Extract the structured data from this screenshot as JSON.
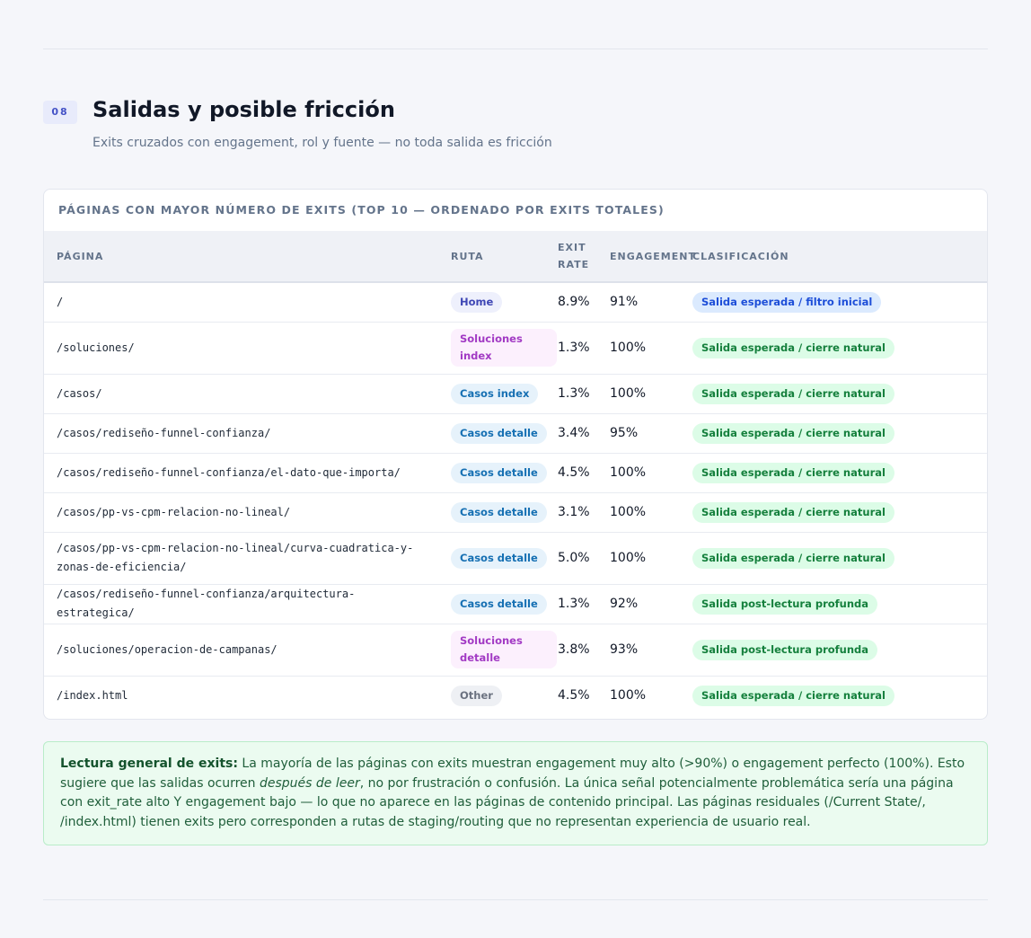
{
  "section": {
    "number": "08",
    "title": "Salidas y posible fricción",
    "subtitle": "Exits cruzados con engagement, rol y fuente — no toda salida es fricción"
  },
  "table": {
    "title": "Páginas con mayor número de exits (top 10 — ordenado por exits totales)",
    "columns": [
      "Página",
      "Ruta",
      "Exit rate",
      "Engagement",
      "Clasificación"
    ],
    "rows": [
      {
        "page": "/",
        "ruta": "Home",
        "ruta_type": "home",
        "exit_rate": "8.9%",
        "engagement": "91%",
        "classification": "Salida esperada / filtro inicial",
        "class_type": "blue"
      },
      {
        "page": "/soluciones/",
        "ruta": "Soluciones index",
        "ruta_type": "sol",
        "exit_rate": "1.3%",
        "engagement": "100%",
        "classification": "Salida esperada / cierre natural",
        "class_type": "green"
      },
      {
        "page": "/casos/",
        "ruta": "Casos index",
        "ruta_type": "casos",
        "exit_rate": "1.3%",
        "engagement": "100%",
        "classification": "Salida esperada / cierre natural",
        "class_type": "green"
      },
      {
        "page": "/casos/rediseño-funnel-confianza/",
        "ruta": "Casos detalle",
        "ruta_type": "casos",
        "exit_rate": "3.4%",
        "engagement": "95%",
        "classification": "Salida esperada / cierre natural",
        "class_type": "green"
      },
      {
        "page": "/casos/rediseño-funnel-confianza/el-dato-que-importa/",
        "ruta": "Casos detalle",
        "ruta_type": "casos",
        "exit_rate": "4.5%",
        "engagement": "100%",
        "classification": "Salida esperada / cierre natural",
        "class_type": "green"
      },
      {
        "page": "/casos/pp-vs-cpm-relacion-no-lineal/",
        "ruta": "Casos detalle",
        "ruta_type": "casos",
        "exit_rate": "3.1%",
        "engagement": "100%",
        "classification": "Salida esperada / cierre natural",
        "class_type": "green"
      },
      {
        "page": "/casos/pp-vs-cpm-relacion-no-lineal/curva-cuadratica-y-zonas-de-eficiencia/",
        "ruta": "Casos detalle",
        "ruta_type": "casos",
        "exit_rate": "5.0%",
        "engagement": "100%",
        "classification": "Salida esperada / cierre natural",
        "class_type": "green"
      },
      {
        "page": "/casos/rediseño-funnel-confianza/arquitectura-estrategica/",
        "ruta": "Casos detalle",
        "ruta_type": "casos",
        "exit_rate": "1.3%",
        "engagement": "92%",
        "classification": "Salida post-lectura profunda",
        "class_type": "green"
      },
      {
        "page": "/soluciones/operacion-de-campanas/",
        "ruta": "Soluciones detalle",
        "ruta_type": "sol",
        "exit_rate": "3.8%",
        "engagement": "93%",
        "classification": "Salida post-lectura profunda",
        "class_type": "green"
      },
      {
        "page": "/index.html",
        "ruta": "Other",
        "ruta_type": "other",
        "exit_rate": "4.5%",
        "engagement": "100%",
        "classification": "Salida esperada / cierre natural",
        "class_type": "green"
      }
    ]
  },
  "note": {
    "lead": "Lectura general de exits:",
    "text_1": " La mayoría de las páginas con exits muestran engagement muy alto (>90%) o engagement perfecto (100%). Esto sugiere que las salidas ocurren ",
    "emphasis": "después de leer",
    "text_2": ", no por frustración o confusión. La única señal potencialmente problemática sería una página con exit_rate alto Y engagement bajo — lo que no aparece en las páginas de contenido principal. Las páginas residuales (/Current State/, /index.html) tienen exits pero corresponden a rutas de staging/routing que no representan experiencia de usuario real."
  }
}
